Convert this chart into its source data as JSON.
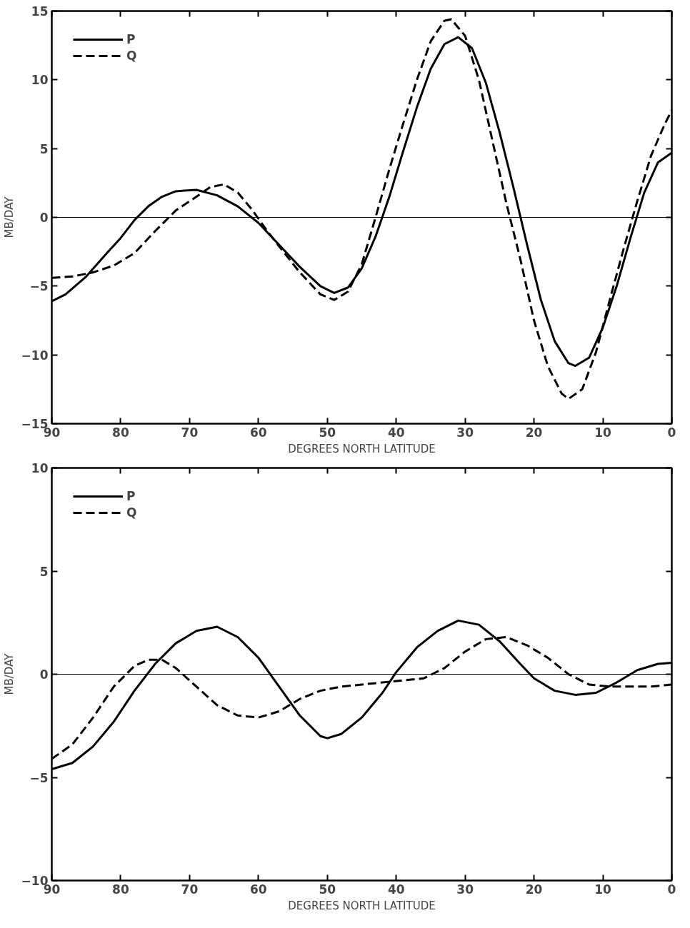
{
  "chart_data": [
    {
      "type": "line",
      "xlabel": "DEGREES NORTH LATITUDE",
      "ylabel": "MB/DAY",
      "xlim": [
        90,
        0
      ],
      "ylim": [
        -15,
        15
      ],
      "xticks": [
        90,
        80,
        70,
        60,
        50,
        40,
        30,
        20,
        10,
        0
      ],
      "yticks": [
        -15,
        -10,
        -5,
        0,
        5,
        10,
        15
      ],
      "grid": false,
      "legend": "top left",
      "ref_lines": [
        {
          "axis": "y",
          "value": 0,
          "color": "#000000"
        }
      ],
      "series": [
        {
          "name": "P",
          "color": "#000000",
          "line_style": "solid",
          "x": [
            90,
            88,
            85,
            82,
            80,
            78,
            76,
            74,
            72,
            69,
            66,
            63,
            60,
            57,
            54,
            51,
            49,
            47,
            45,
            43,
            41,
            39,
            37,
            35,
            33,
            31,
            29,
            27,
            25,
            23,
            21,
            19,
            17,
            15,
            14,
            12,
            10,
            8,
            6,
            4,
            2,
            0
          ],
          "values": [
            -6.1,
            -5.6,
            -4.3,
            -2.6,
            -1.5,
            -0.2,
            0.8,
            1.5,
            1.9,
            2.0,
            1.6,
            0.8,
            -0.4,
            -2.0,
            -3.6,
            -5.0,
            -5.5,
            -5.1,
            -3.7,
            -1.4,
            1.5,
            4.8,
            8.0,
            10.8,
            12.6,
            13.1,
            12.3,
            9.8,
            6.2,
            2.2,
            -2.0,
            -6.0,
            -9.0,
            -10.6,
            -10.8,
            -10.2,
            -8.0,
            -5.0,
            -1.5,
            1.8,
            4.0,
            4.7
          ]
        },
        {
          "name": "Q",
          "color": "#000000",
          "line_style": "dashed",
          "x": [
            90,
            87,
            84,
            81,
            78,
            75,
            72,
            69,
            67,
            65,
            63,
            61,
            59,
            57,
            54,
            51,
            49,
            47,
            45,
            43,
            41,
            39,
            37,
            35,
            33,
            32,
            30,
            28,
            26,
            24,
            22,
            20,
            18,
            16,
            15,
            13,
            11,
            9,
            7,
            5,
            3,
            1,
            0
          ],
          "values": [
            -4.4,
            -4.3,
            -4.0,
            -3.5,
            -2.6,
            -1.0,
            0.5,
            1.5,
            2.2,
            2.4,
            1.8,
            0.6,
            -0.8,
            -2.1,
            -4.0,
            -5.6,
            -6.0,
            -5.4,
            -3.4,
            0.0,
            3.5,
            6.8,
            10.0,
            12.8,
            14.3,
            14.4,
            13.2,
            10.0,
            5.5,
            1.0,
            -3.0,
            -7.5,
            -10.8,
            -12.8,
            -13.2,
            -12.5,
            -9.8,
            -6.0,
            -2.3,
            1.2,
            4.5,
            6.8,
            7.8
          ]
        }
      ]
    },
    {
      "type": "line",
      "xlabel": "DEGREES NORTH LATITUDE",
      "ylabel": "MB/DAY",
      "xlim": [
        90,
        0
      ],
      "ylim": [
        -10,
        10
      ],
      "xticks": [
        90,
        80,
        70,
        60,
        50,
        40,
        30,
        20,
        10,
        0
      ],
      "yticks": [
        -10,
        -5,
        0,
        5,
        10
      ],
      "grid": false,
      "legend": "top left",
      "ref_lines": [
        {
          "axis": "y",
          "value": 0,
          "color": "#000000"
        }
      ],
      "series": [
        {
          "name": "P",
          "color": "#000000",
          "line_style": "solid",
          "x": [
            90,
            87,
            84,
            81,
            78,
            75,
            72,
            69,
            66,
            63,
            60,
            57,
            54,
            51,
            50,
            48,
            45,
            42,
            40,
            37,
            34,
            31,
            28,
            25,
            22,
            20,
            17,
            14,
            11,
            8,
            5,
            2,
            0
          ],
          "values": [
            -4.6,
            -4.3,
            -3.5,
            -2.3,
            -0.8,
            0.5,
            1.5,
            2.1,
            2.3,
            1.8,
            0.8,
            -0.6,
            -2.0,
            -3.0,
            -3.1,
            -2.9,
            -2.1,
            -0.9,
            0.1,
            1.3,
            2.1,
            2.6,
            2.4,
            1.6,
            0.5,
            -0.2,
            -0.8,
            -1.0,
            -0.9,
            -0.4,
            0.2,
            0.5,
            0.55
          ]
        },
        {
          "name": "Q",
          "color": "#000000",
          "line_style": "dashed",
          "x": [
            90,
            87,
            84,
            81,
            78,
            76,
            74,
            72,
            69,
            66,
            63,
            60,
            57,
            54,
            51,
            48,
            45,
            42,
            39,
            36,
            33,
            30,
            27,
            24,
            21,
            18,
            15,
            12,
            9,
            6,
            3,
            0
          ],
          "values": [
            -4.1,
            -3.4,
            -2.1,
            -0.6,
            0.4,
            0.7,
            0.7,
            0.3,
            -0.6,
            -1.5,
            -2.0,
            -2.1,
            -1.8,
            -1.2,
            -0.8,
            -0.6,
            -0.5,
            -0.4,
            -0.3,
            -0.2,
            0.3,
            1.1,
            1.7,
            1.8,
            1.4,
            0.8,
            0.0,
            -0.5,
            -0.6,
            -0.6,
            -0.6,
            -0.5
          ]
        }
      ]
    }
  ]
}
